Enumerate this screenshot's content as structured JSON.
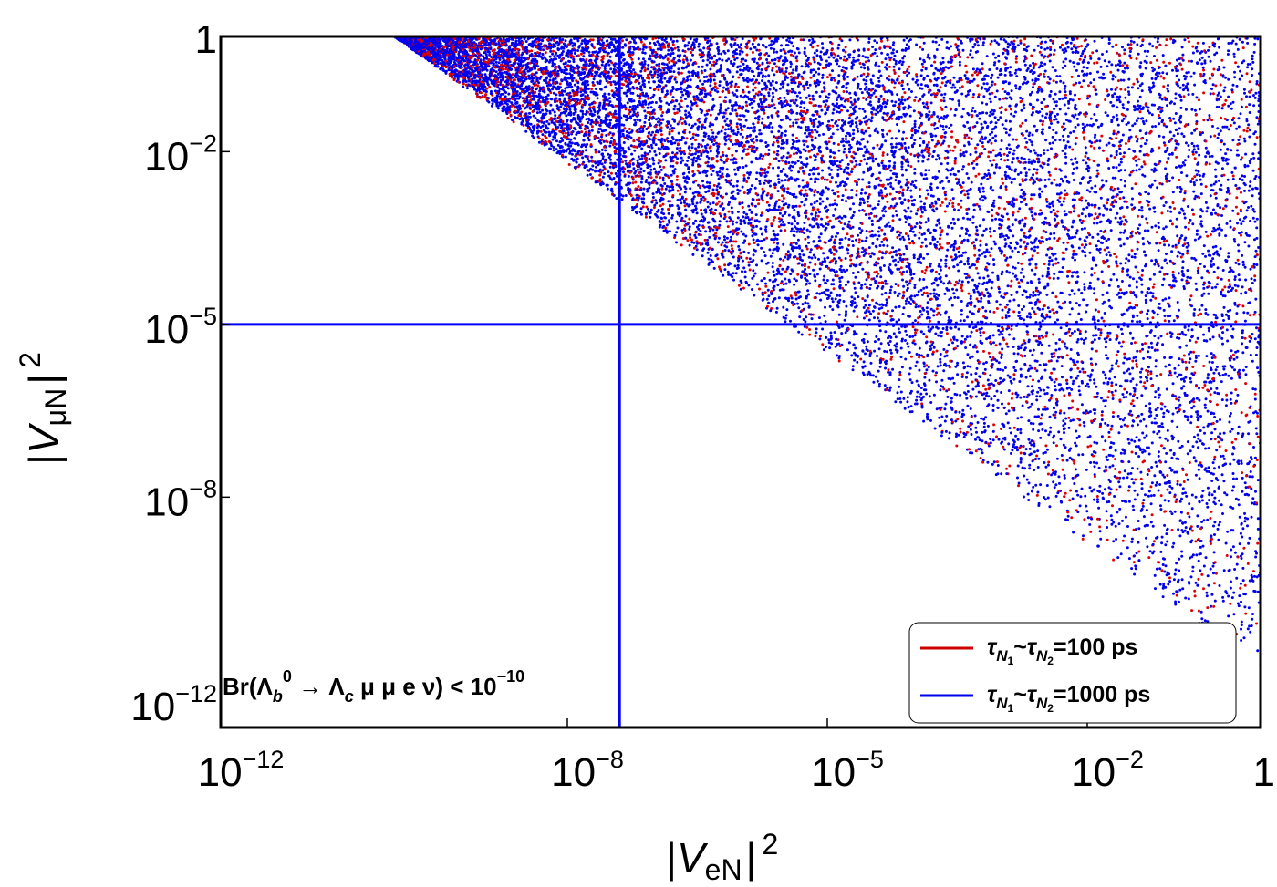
{
  "chart_data": {
    "type": "scatter",
    "x_scale": "log",
    "y_scale": "log",
    "xlim": [
      1e-12,
      1
    ],
    "ylim": [
      1e-12,
      1
    ],
    "xlabel": "|V_eN|^2",
    "ylabel": "|V_μN|^2",
    "x_ticks": [
      {
        "value": 1e-12,
        "base": "10",
        "exp": "−12"
      },
      {
        "value": 1e-08,
        "base": "10",
        "exp": "−8"
      },
      {
        "value": 1e-05,
        "base": "10",
        "exp": "−5"
      },
      {
        "value": 0.01,
        "base": "10",
        "exp": "−2"
      },
      {
        "value": 1,
        "base": "1",
        "exp": ""
      }
    ],
    "y_ticks": [
      {
        "value": 1e-12,
        "base": "10",
        "exp": "−12"
      },
      {
        "value": 1e-08,
        "base": "10",
        "exp": "−8"
      },
      {
        "value": 1e-05,
        "base": "10",
        "exp": "−5"
      },
      {
        "value": 0.01,
        "base": "10",
        "exp": "−2"
      },
      {
        "value": 1,
        "base": "1",
        "exp": ""
      }
    ],
    "reference_lines": {
      "vertical_x": 4e-08,
      "horizontal_y": 1e-05,
      "color": "#0000ff"
    },
    "region_boundary": {
      "description": "points fill region above line",
      "points": [
        [
          1e-10,
          1
        ],
        [
          1,
          1e-11
        ]
      ]
    },
    "series": [
      {
        "name": "τN1~τN2=100 ps",
        "color": "#e00000",
        "count": 2600
      },
      {
        "name": "τN1~τN2=1000 ps",
        "color": "#0000ee",
        "count": 9000
      }
    ],
    "annotation": "Br(Λb0 → Λc μ μ e ν) < 10−10",
    "grid": false,
    "legend_position": "bottom-right"
  },
  "legend": {
    "items": [
      {
        "sym": "τ",
        "sub1": "N",
        "subsub1": "1",
        "tilde": "~",
        "sym2": "τ",
        "sub2": "N",
        "subsub2": "2",
        "rest": "=100 ps",
        "color": "#cc0000"
      },
      {
        "sym": "τ",
        "sub1": "N",
        "subsub1": "1",
        "tilde": "~",
        "sym2": "τ",
        "sub2": "N",
        "subsub2": "2",
        "rest": "=1000 ps",
        "color": "#0000ee"
      }
    ]
  },
  "annotation_parts": {
    "prefix": "Br(Λ",
    "sub_b": "b",
    "sup_0": "0",
    "arrow": " → Λ",
    "sub_c": "c",
    "mid": " μ μ e ν) < 10",
    "exp": "−10"
  },
  "axis_titles": {
    "x": {
      "bar_l": "|",
      "V": "V",
      "sub": "eN",
      "bar_r": "|",
      "sup": "2"
    },
    "y": {
      "bar_l": "|",
      "V": "V",
      "sub": "μN",
      "bar_r": "|",
      "sup": "2"
    }
  }
}
